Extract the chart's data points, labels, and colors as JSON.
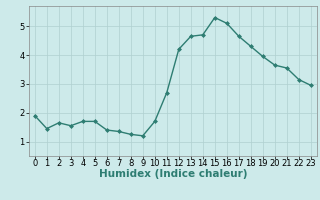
{
  "x": [
    0,
    1,
    2,
    3,
    4,
    5,
    6,
    7,
    8,
    9,
    10,
    11,
    12,
    13,
    14,
    15,
    16,
    17,
    18,
    19,
    20,
    21,
    22,
    23
  ],
  "y": [
    1.9,
    1.45,
    1.65,
    1.55,
    1.7,
    1.7,
    1.4,
    1.35,
    1.25,
    1.2,
    1.7,
    2.7,
    4.2,
    4.65,
    4.7,
    5.3,
    5.1,
    4.65,
    4.3,
    3.95,
    3.65,
    3.55,
    3.15,
    2.95
  ],
  "line_color": "#2e7d72",
  "marker": "D",
  "markersize": 2.0,
  "linewidth": 1.0,
  "bg_color": "#cdeaea",
  "grid_color": "#b0d0d0",
  "xlabel": "Humidex (Indice chaleur)",
  "xlabel_fontsize": 7.5,
  "tick_fontsize": 6.0,
  "ylim": [
    0.5,
    5.7
  ],
  "xlim": [
    -0.5,
    23.5
  ],
  "yticks": [
    1,
    2,
    3,
    4,
    5
  ],
  "xticks": [
    0,
    1,
    2,
    3,
    4,
    5,
    6,
    7,
    8,
    9,
    10,
    11,
    12,
    13,
    14,
    15,
    16,
    17,
    18,
    19,
    20,
    21,
    22,
    23
  ],
  "xticklabels": [
    "0",
    "1",
    "2",
    "3",
    "4",
    "5",
    "6",
    "7",
    "8",
    "9",
    "10",
    "11",
    "12",
    "13",
    "14",
    "15",
    "16",
    "17",
    "18",
    "19",
    "20",
    "21",
    "22",
    "23"
  ]
}
